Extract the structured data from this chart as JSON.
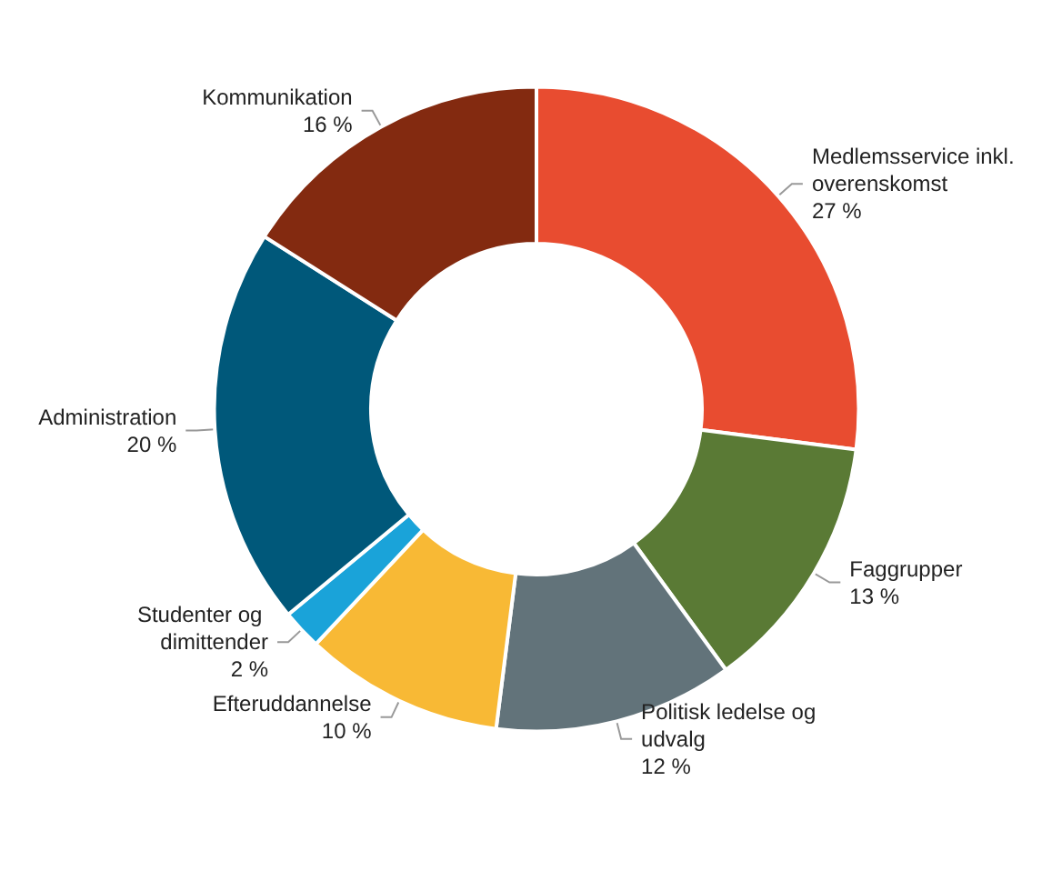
{
  "chart_data": {
    "type": "donut",
    "categories": [
      "Medlemsservice inkl. overenskomst",
      "Faggrupper",
      "Politisk ledelse og udvalg",
      "Efteruddannelse",
      "Studenter og dimittender",
      "Administration",
      "Kommunikation"
    ],
    "values": [
      27,
      13,
      12,
      10,
      2,
      20,
      16
    ],
    "colors": [
      "#e84c30",
      "#5a7a35",
      "#62737a",
      "#f8b935",
      "#1aa3d9",
      "#00587a",
      "#832a10"
    ],
    "value_labels": [
      "27 %",
      "13 %",
      "12 %",
      "10 %",
      "2 %",
      "20 %",
      "16 %"
    ],
    "legend": false
  }
}
